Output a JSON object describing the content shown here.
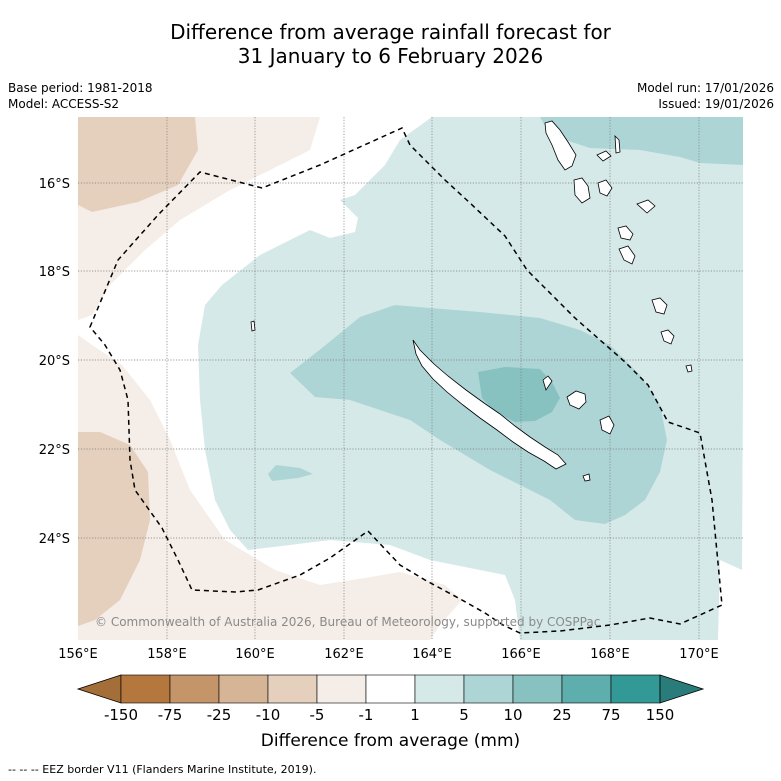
{
  "title_line1": "Difference from average rainfall forecast for",
  "title_line2": "31 January to 6 February 2026",
  "meta": {
    "base_period": "Base period: 1981-2018",
    "model": "Model: ACCESS-S2",
    "model_run": "Model run: 17/01/2026",
    "issued": "Issued: 19/01/2026"
  },
  "map": {
    "lat_labels": [
      "16°S",
      "18°S",
      "20°S",
      "22°S",
      "24°S"
    ],
    "lon_labels": [
      "156°E",
      "158°E",
      "160°E",
      "162°E",
      "164°E",
      "166°E",
      "168°E",
      "170°E"
    ],
    "copyright": "© Commonwealth of Australia 2026, Bureau of Meteorology, supported by COSPPac"
  },
  "colorbar": {
    "labels": [
      "-150",
      "-75",
      "-25",
      "-10",
      "-5",
      "-1",
      "1",
      "5",
      "10",
      "25",
      "75",
      "150"
    ],
    "colors": [
      "#a46e39",
      "#b4773e",
      "#c39569",
      "#d6b496",
      "#e5d0be",
      "#f5ede7",
      "#ffffff",
      "#d5e9e8",
      "#aed5d5",
      "#87c2c1",
      "#5daead",
      "#329996",
      "#2a7c7a"
    ],
    "title": "Difference from average (mm)"
  },
  "footer": "-- -- -- EEZ border V11 (Flanders Marine Institute, 2019)."
}
